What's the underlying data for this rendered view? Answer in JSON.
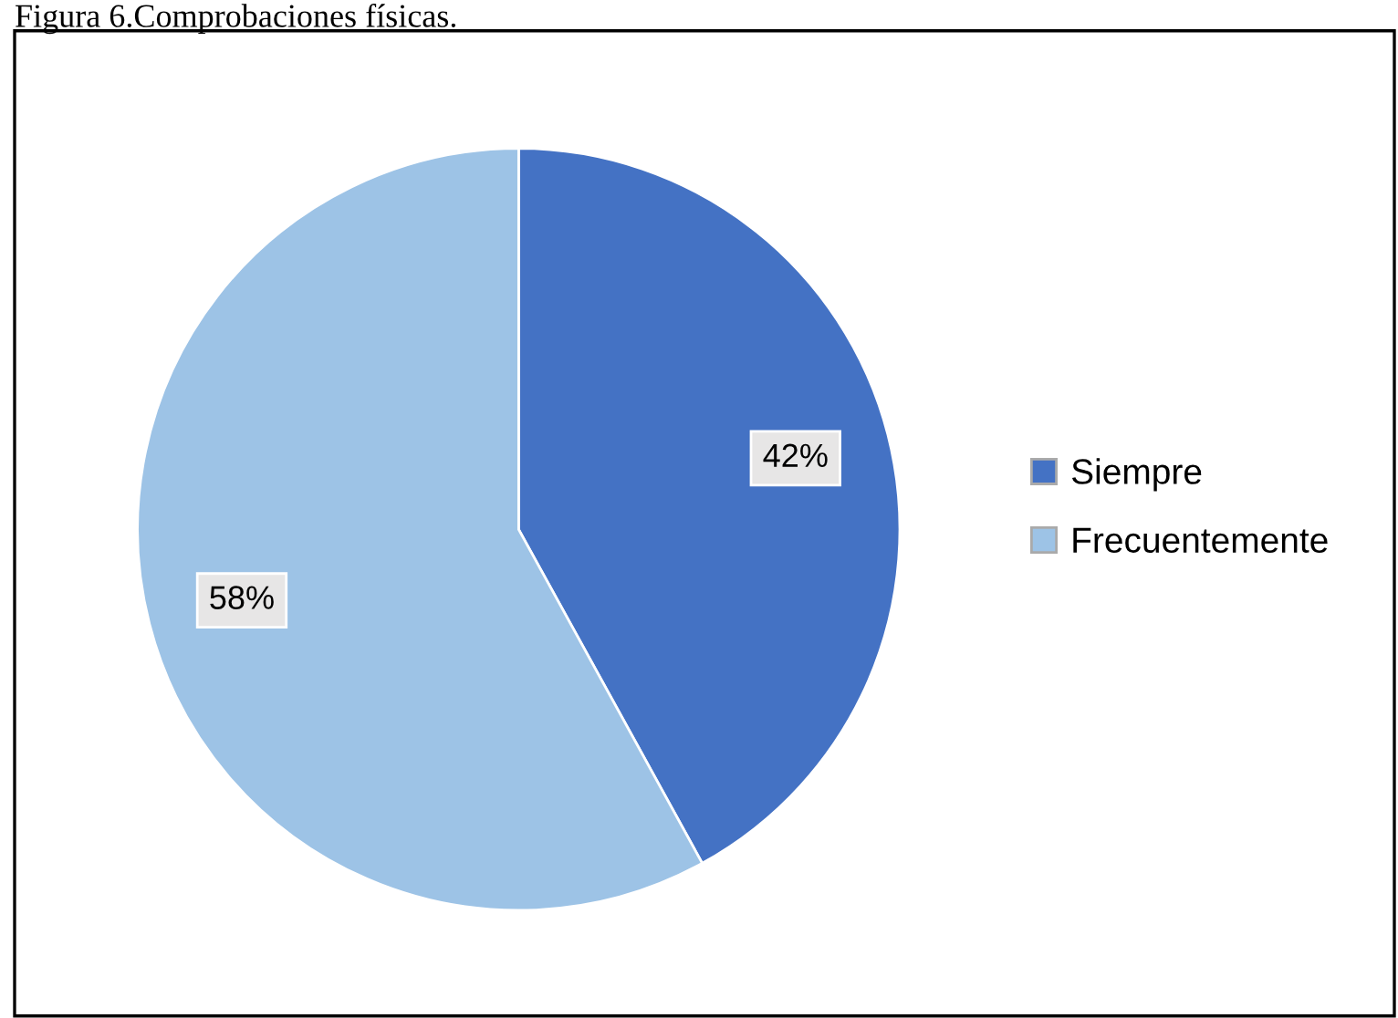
{
  "chart_data": {
    "type": "pie",
    "title": "Figura 6.Comprobaciones físicas.",
    "categories": [
      "Siempre",
      "Frecuentemente"
    ],
    "values": [
      42,
      58
    ],
    "colors": [
      "#4472c4",
      "#9dc3e6"
    ],
    "value_labels": [
      "42%",
      "58%"
    ],
    "legend": "right"
  }
}
